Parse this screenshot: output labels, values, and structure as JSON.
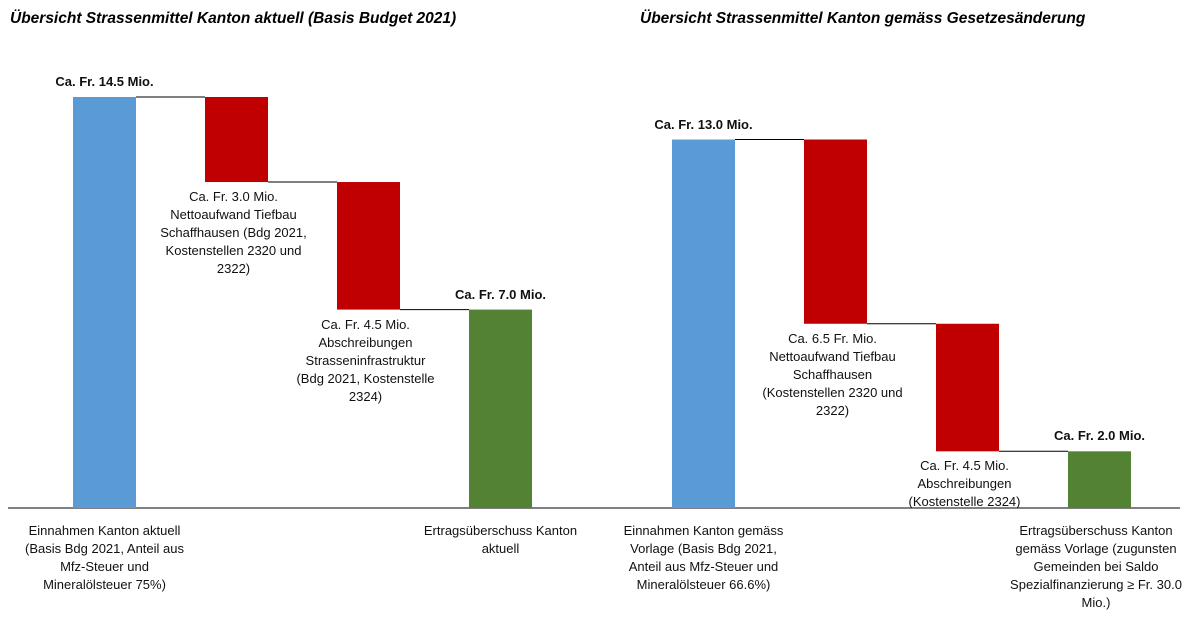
{
  "chart_data": [
    {
      "type": "waterfall",
      "title": "Übersicht Strassenmittel Kanton aktuell (Basis Budget 2021)",
      "categories": [
        "Einnahmen Kanton aktuell (Basis Bdg 2021, Anteil aus Mfz-Steuer und Mineralölsteuer 75%)",
        "Nettoaufwand Tiefbau Schaffhausen (Bdg 2021, Kostenstellen 2320 und 2322)",
        "Abschreibungen Strasseninfrastruktur (Bdg 2021, Kostenstelle 2324)",
        "Ertragsüberschuss Kanton aktuell"
      ],
      "values": [
        14.5,
        3.0,
        4.5,
        7.0
      ],
      "value_labels": [
        "Ca. Fr. 14.5 Mio.",
        "Ca. Fr. 3.0 Mio.",
        "Ca. Fr. 4.5 Mio.",
        "Ca. Fr. 7.0 Mio."
      ],
      "kinds": [
        "total",
        "decrease",
        "decrease",
        "total"
      ],
      "colors": [
        "#5b9bd5",
        "#c00000",
        "#c00000",
        "#548235"
      ]
    },
    {
      "type": "waterfall",
      "title": "Übersicht Strassenmittel Kanton gemäss Gesetzesänderung",
      "categories": [
        "Einnahmen Kanton gemäss Vorlage (Basis Bdg 2021, Anteil aus Mfz-Steuer und Mineralölsteuer 66.6%)",
        "Nettoaufwand Tiefbau Schaffhausen (Kostenstellen 2320 und 2322)",
        "Abschreibungen (Kostenstelle 2324)",
        "Ertragsüberschuss Kanton gemäss Vorlage (zugunsten Gemeinden bei Saldo Spezialfinanzierung ≥ Fr. 30.0 Mio.)"
      ],
      "values": [
        13.0,
        6.5,
        4.5,
        2.0
      ],
      "value_labels": [
        "Ca. Fr. 13.0 Mio.",
        "Ca. 6.5 Fr. Mio.",
        "Ca. Fr. 4.5 Mio.",
        "Ca. Fr. 2.0 Mio."
      ],
      "kinds": [
        "total",
        "decrease",
        "decrease",
        "total"
      ],
      "colors": [
        "#5b9bd5",
        "#c00000",
        "#c00000",
        "#548235"
      ]
    }
  ]
}
